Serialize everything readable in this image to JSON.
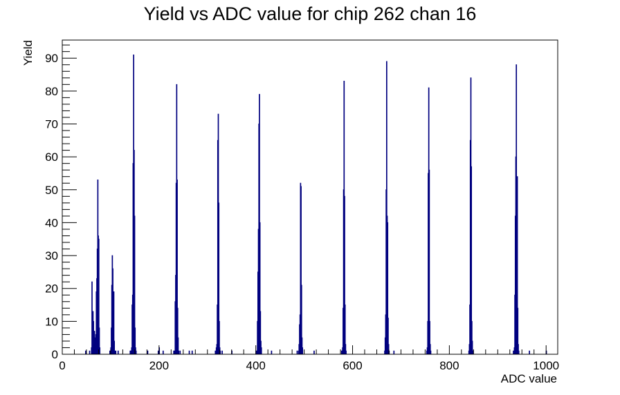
{
  "chart_data": {
    "type": "histogram",
    "title": "Yield vs ADC value for chip 262 chan 16",
    "xlabel": "ADC value",
    "ylabel": "Yield",
    "xlim": [
      0,
      1024
    ],
    "ylim": [
      0,
      95.5
    ],
    "x_ticks": [
      0,
      200,
      400,
      600,
      800,
      1000
    ],
    "y_ticks": [
      0,
      10,
      20,
      30,
      40,
      50,
      60,
      70,
      80,
      90
    ],
    "grid": false,
    "legend": "none",
    "line_color": "#00007f",
    "bins": [
      [
        48,
        1
      ],
      [
        56,
        1
      ],
      [
        60,
        2
      ],
      [
        61,
        22
      ],
      [
        62,
        10
      ],
      [
        63,
        13
      ],
      [
        64,
        10
      ],
      [
        65,
        3
      ],
      [
        66,
        7
      ],
      [
        67,
        5
      ],
      [
        68,
        2
      ],
      [
        69,
        6
      ],
      [
        70,
        19
      ],
      [
        71,
        23
      ],
      [
        72,
        32
      ],
      [
        73,
        53
      ],
      [
        74,
        36
      ],
      [
        75,
        35
      ],
      [
        76,
        8
      ],
      [
        77,
        2
      ],
      [
        98,
        1
      ],
      [
        100,
        2
      ],
      [
        101,
        8
      ],
      [
        102,
        21
      ],
      [
        103,
        30
      ],
      [
        104,
        26
      ],
      [
        105,
        13
      ],
      [
        106,
        19
      ],
      [
        107,
        4
      ],
      [
        108,
        1
      ],
      [
        110,
        1
      ],
      [
        115,
        1
      ],
      [
        140,
        1
      ],
      [
        141,
        1
      ],
      [
        142,
        1
      ],
      [
        143,
        2
      ],
      [
        144,
        15
      ],
      [
        145,
        18
      ],
      [
        146,
        58
      ],
      [
        147,
        91
      ],
      [
        148,
        62
      ],
      [
        149,
        42
      ],
      [
        150,
        8
      ],
      [
        151,
        2
      ],
      [
        152,
        1
      ],
      [
        176,
        1
      ],
      [
        198,
        1
      ],
      [
        200,
        2
      ],
      [
        208,
        1
      ],
      [
        230,
        1
      ],
      [
        232,
        1
      ],
      [
        233,
        16
      ],
      [
        234,
        24
      ],
      [
        235,
        52
      ],
      [
        236,
        82
      ],
      [
        237,
        53
      ],
      [
        238,
        14
      ],
      [
        239,
        5
      ],
      [
        240,
        1
      ],
      [
        243,
        1
      ],
      [
        262,
        1
      ],
      [
        268,
        1
      ],
      [
        316,
        1
      ],
      [
        318,
        2
      ],
      [
        319,
        3
      ],
      [
        320,
        15
      ],
      [
        321,
        65
      ],
      [
        322,
        73
      ],
      [
        323,
        46
      ],
      [
        324,
        10
      ],
      [
        325,
        2
      ],
      [
        326,
        1
      ],
      [
        330,
        1
      ],
      [
        350,
        1
      ],
      [
        400,
        1
      ],
      [
        402,
        1
      ],
      [
        403,
        10
      ],
      [
        404,
        25
      ],
      [
        405,
        38
      ],
      [
        406,
        70
      ],
      [
        407,
        79
      ],
      [
        408,
        40
      ],
      [
        409,
        13
      ],
      [
        410,
        4
      ],
      [
        411,
        2
      ],
      [
        432,
        1
      ],
      [
        485,
        1
      ],
      [
        488,
        1
      ],
      [
        489,
        3
      ],
      [
        490,
        9
      ],
      [
        491,
        12
      ],
      [
        492,
        52
      ],
      [
        493,
        51
      ],
      [
        494,
        21
      ],
      [
        495,
        5
      ],
      [
        496,
        2
      ],
      [
        520,
        1
      ],
      [
        577,
        1
      ],
      [
        578,
        1
      ],
      [
        579,
        2
      ],
      [
        580,
        14
      ],
      [
        581,
        50
      ],
      [
        582,
        83
      ],
      [
        583,
        48
      ],
      [
        584,
        15
      ],
      [
        585,
        3
      ],
      [
        586,
        1
      ],
      [
        666,
        1
      ],
      [
        667,
        5
      ],
      [
        668,
        12
      ],
      [
        669,
        50
      ],
      [
        670,
        89
      ],
      [
        671,
        42
      ],
      [
        672,
        40
      ],
      [
        673,
        11
      ],
      [
        674,
        3
      ],
      [
        675,
        1
      ],
      [
        685,
        1
      ],
      [
        753,
        1
      ],
      [
        754,
        2
      ],
      [
        755,
        10
      ],
      [
        756,
        55
      ],
      [
        757,
        81
      ],
      [
        758,
        56
      ],
      [
        759,
        10
      ],
      [
        760,
        3
      ],
      [
        761,
        1
      ],
      [
        840,
        1
      ],
      [
        841,
        3
      ],
      [
        842,
        15
      ],
      [
        843,
        65
      ],
      [
        844,
        84
      ],
      [
        845,
        57
      ],
      [
        846,
        10
      ],
      [
        847,
        4
      ],
      [
        848,
        1
      ],
      [
        932,
        1
      ],
      [
        934,
        2
      ],
      [
        935,
        18
      ],
      [
        936,
        42
      ],
      [
        937,
        60
      ],
      [
        938,
        88
      ],
      [
        939,
        19
      ],
      [
        940,
        54
      ],
      [
        941,
        14
      ],
      [
        942,
        3
      ],
      [
        943,
        1
      ],
      [
        965,
        1
      ],
      [
        1000,
        1
      ]
    ]
  }
}
